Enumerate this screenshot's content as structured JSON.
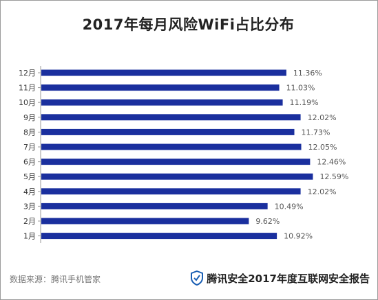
{
  "chart_data": {
    "type": "bar",
    "orientation": "horizontal",
    "title": "2017年每月风险WiFi占比分布",
    "categories": [
      "12月",
      "11月",
      "10月",
      "9月",
      "8月",
      "7月",
      "6月",
      "5月",
      "4月",
      "3月",
      "2月",
      "1月"
    ],
    "values": [
      11.36,
      11.03,
      11.19,
      12.02,
      11.73,
      12.05,
      12.46,
      12.59,
      12.02,
      10.49,
      9.62,
      10.92
    ],
    "data_labels": [
      "11.36%",
      "11.03%",
      "11.19%",
      "12.02%",
      "11.73%",
      "12.05%",
      "12.46%",
      "12.59%",
      "12.02%",
      "10.49%",
      "9.62%",
      "10.92%"
    ],
    "xlim": [
      0,
      13.3
    ],
    "grid": false,
    "legend": "none",
    "bar_color": "#1a2f9e"
  },
  "footer": {
    "source": "数据来源：腾讯手机管家",
    "brand": "腾讯安全2017年度互联网安全报告",
    "brand_icon": "shield-icon",
    "brand_color": "#1a5fb4"
  }
}
